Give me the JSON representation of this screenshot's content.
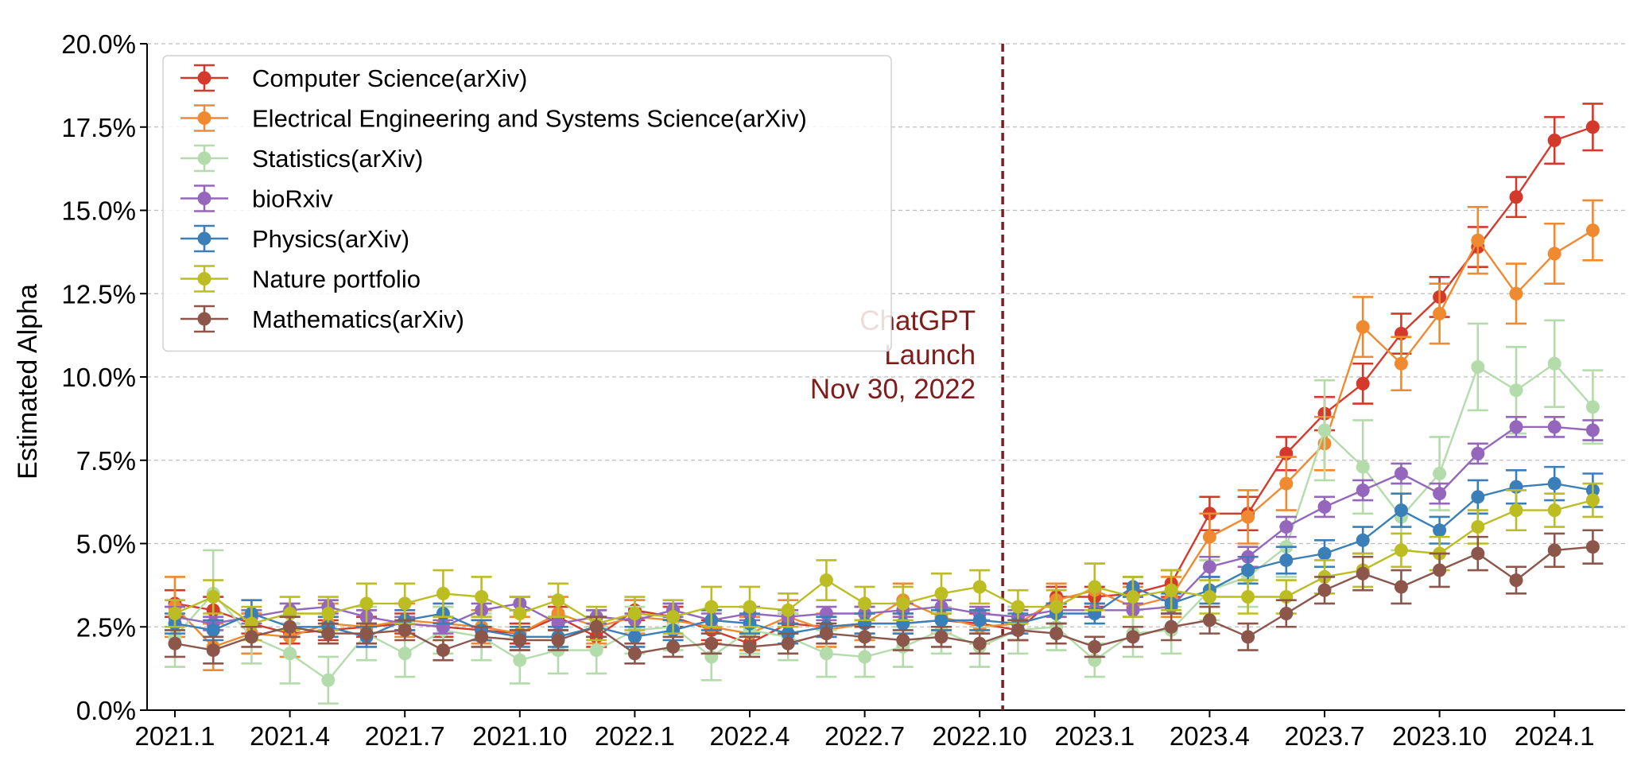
{
  "chart_data": {
    "type": "line",
    "ylabel": "Estimated Alpha",
    "xlabel": "",
    "ylim": [
      0,
      20
    ],
    "x_tick_labels": [
      "2021.1",
      "2021.4",
      "2021.7",
      "2021.10",
      "2022.1",
      "2022.4",
      "2022.7",
      "2022.10",
      "2023.1",
      "2023.4",
      "2023.7",
      "2023.10",
      "2024.1"
    ],
    "y_tick_labels": [
      "0.0%",
      "2.5%",
      "5.0%",
      "7.5%",
      "10.0%",
      "12.5%",
      "15.0%",
      "17.5%",
      "20.0%"
    ],
    "y_ticks": [
      0,
      2.5,
      5,
      7.5,
      10,
      12.5,
      15,
      17.5,
      20
    ],
    "grid": "horizontal dashed",
    "legend_position": "top-left",
    "annotation": {
      "x": "2022.11",
      "lines": [
        "ChatGPT",
        "Launch",
        "Nov 30, 2022"
      ],
      "color": "#7f1d1d",
      "style": "dashed vertical line"
    },
    "x": [
      "2021.1",
      "2021.2",
      "2021.3",
      "2021.4",
      "2021.5",
      "2021.6",
      "2021.7",
      "2021.8",
      "2021.9",
      "2021.10",
      "2021.11",
      "2021.12",
      "2022.1",
      "2022.2",
      "2022.3",
      "2022.4",
      "2022.5",
      "2022.6",
      "2022.7",
      "2022.8",
      "2022.9",
      "2022.10",
      "2022.11",
      "2022.12",
      "2023.1",
      "2023.2",
      "2023.3",
      "2023.4",
      "2023.5",
      "2023.6",
      "2023.7",
      "2023.8",
      "2023.9",
      "2023.10",
      "2023.11",
      "2023.12",
      "2024.1",
      "2024.2"
    ],
    "series": [
      {
        "name": "Computer Science(arXiv)",
        "color": "#d33a2c",
        "values": [
          3.2,
          3.0,
          2.6,
          2.3,
          2.4,
          2.5,
          2.6,
          2.5,
          2.4,
          2.3,
          2.8,
          2.2,
          3.0,
          2.8,
          2.4,
          2.0,
          2.6,
          2.5,
          2.6,
          2.6,
          2.7,
          2.6,
          2.4,
          3.4,
          3.4,
          3.5,
          3.8,
          5.9,
          5.9,
          7.7,
          8.9,
          9.8,
          11.3,
          12.4,
          13.9,
          15.4,
          17.1,
          17.5
        ],
        "errors": [
          0.4,
          0.4,
          0.3,
          0.3,
          0.3,
          0.3,
          0.3,
          0.3,
          0.3,
          0.3,
          0.3,
          0.3,
          0.3,
          0.3,
          0.3,
          0.3,
          0.3,
          0.3,
          0.3,
          0.3,
          0.3,
          0.3,
          0.3,
          0.3,
          0.3,
          0.3,
          0.4,
          0.5,
          0.5,
          0.5,
          0.5,
          0.6,
          0.6,
          0.6,
          0.6,
          0.6,
          0.7,
          0.7
        ]
      },
      {
        "name": "Electrical Engineering and Systems Science(arXiv)",
        "color": "#f08a30",
        "values": [
          3.1,
          1.9,
          2.3,
          2.2,
          2.6,
          2.5,
          2.7,
          2.6,
          2.5,
          2.3,
          2.9,
          2.5,
          2.8,
          2.7,
          2.5,
          2.3,
          2.8,
          2.4,
          2.6,
          3.3,
          2.8,
          2.5,
          2.6,
          3.3,
          3.6,
          3.1,
          3.4,
          5.2,
          5.8,
          6.8,
          8.0,
          11.5,
          10.4,
          11.9,
          14.1,
          12.5,
          13.7,
          14.4
        ],
        "errors": [
          0.9,
          0.7,
          0.6,
          0.6,
          0.6,
          0.5,
          0.5,
          0.5,
          0.5,
          0.5,
          0.5,
          0.5,
          0.5,
          0.5,
          0.5,
          0.5,
          0.5,
          0.5,
          0.5,
          0.5,
          0.5,
          0.5,
          0.5,
          0.5,
          0.8,
          0.6,
          0.6,
          0.7,
          0.8,
          0.8,
          0.8,
          0.9,
          0.8,
          0.9,
          1.0,
          0.9,
          0.9,
          0.9
        ]
      },
      {
        "name": "Statistics(arXiv)",
        "color": "#b3dcaa",
        "values": [
          2.2,
          3.5,
          2.2,
          1.7,
          0.9,
          2.3,
          1.7,
          2.4,
          2.2,
          1.5,
          1.8,
          1.8,
          2.4,
          2.5,
          1.6,
          2.4,
          2.2,
          1.7,
          1.6,
          1.9,
          2.4,
          1.9,
          2.4,
          2.5,
          1.5,
          2.3,
          2.4,
          3.6,
          4.0,
          4.9,
          8.4,
          7.3,
          5.8,
          7.1,
          10.3,
          9.6,
          10.4,
          9.1
        ],
        "errors": [
          0.9,
          1.3,
          0.8,
          0.9,
          0.7,
          0.8,
          0.7,
          0.7,
          0.7,
          0.7,
          0.7,
          0.7,
          0.7,
          0.7,
          0.7,
          0.7,
          0.7,
          0.7,
          0.6,
          0.6,
          0.7,
          0.6,
          0.7,
          0.7,
          0.5,
          0.7,
          0.7,
          0.9,
          0.9,
          0.9,
          1.5,
          1.4,
          1.0,
          1.1,
          1.3,
          1.3,
          1.3,
          1.1
        ]
      },
      {
        "name": "bioRxiv",
        "color": "#9467bd",
        "values": [
          2.8,
          2.6,
          2.8,
          3.0,
          3.1,
          2.8,
          2.6,
          2.5,
          3.0,
          3.2,
          2.6,
          2.8,
          2.7,
          3.0,
          2.7,
          2.9,
          2.8,
          2.9,
          2.9,
          3.0,
          3.1,
          2.9,
          2.8,
          3.0,
          3.0,
          3.0,
          3.1,
          4.3,
          4.6,
          5.5,
          6.1,
          6.6,
          7.1,
          6.5,
          7.7,
          8.5,
          8.5,
          8.4
        ],
        "errors": [
          0.3,
          0.2,
          0.2,
          0.2,
          0.2,
          0.2,
          0.2,
          0.2,
          0.2,
          0.2,
          0.2,
          0.2,
          0.2,
          0.2,
          0.2,
          0.2,
          0.2,
          0.2,
          0.2,
          0.2,
          0.2,
          0.2,
          0.2,
          0.2,
          0.2,
          0.2,
          0.2,
          0.3,
          0.3,
          0.3,
          0.3,
          0.3,
          0.3,
          0.3,
          0.3,
          0.3,
          0.3,
          0.3
        ]
      },
      {
        "name": "Physics(arXiv)",
        "color": "#3a7fb8",
        "values": [
          2.6,
          2.4,
          2.9,
          2.5,
          2.5,
          2.2,
          2.7,
          2.9,
          2.4,
          2.2,
          2.2,
          2.5,
          2.2,
          2.4,
          2.7,
          2.6,
          2.3,
          2.5,
          2.6,
          2.6,
          2.7,
          2.7,
          2.6,
          2.9,
          2.9,
          3.7,
          3.2,
          3.6,
          4.2,
          4.5,
          4.7,
          5.1,
          6.0,
          5.4,
          6.4,
          6.7,
          6.8,
          6.6
        ],
        "errors": [
          0.3,
          0.3,
          0.4,
          0.3,
          0.3,
          0.3,
          0.3,
          0.3,
          0.3,
          0.3,
          0.3,
          0.3,
          0.3,
          0.3,
          0.3,
          0.3,
          0.3,
          0.3,
          0.3,
          0.3,
          0.3,
          0.3,
          0.3,
          0.3,
          0.3,
          0.3,
          0.3,
          0.4,
          0.4,
          0.4,
          0.4,
          0.4,
          0.5,
          0.4,
          0.5,
          0.5,
          0.5,
          0.5
        ]
      },
      {
        "name": "Nature portfolio",
        "color": "#bcbd22",
        "values": [
          2.9,
          3.4,
          2.6,
          2.9,
          2.9,
          3.2,
          3.2,
          3.5,
          3.4,
          2.9,
          3.3,
          2.6,
          2.9,
          2.8,
          3.1,
          3.1,
          3.0,
          3.9,
          3.2,
          3.2,
          3.5,
          3.7,
          3.1,
          3.1,
          3.7,
          3.4,
          3.6,
          3.4,
          3.4,
          3.4,
          4.0,
          4.2,
          4.8,
          4.7,
          5.5,
          6.0,
          6.0,
          6.3
        ],
        "errors": [
          0.4,
          0.5,
          0.5,
          0.5,
          0.5,
          0.6,
          0.6,
          0.7,
          0.6,
          0.5,
          0.5,
          0.5,
          0.5,
          0.5,
          0.6,
          0.6,
          0.5,
          0.6,
          0.5,
          0.5,
          0.6,
          0.5,
          0.5,
          0.5,
          0.7,
          0.6,
          0.6,
          0.5,
          0.5,
          0.5,
          0.5,
          0.5,
          0.5,
          0.5,
          0.5,
          0.6,
          0.5,
          0.5
        ]
      },
      {
        "name": "Mathematics(arXiv)",
        "color": "#8c564b",
        "values": [
          2.0,
          1.8,
          2.2,
          2.5,
          2.3,
          2.3,
          2.4,
          1.8,
          2.2,
          2.1,
          2.1,
          2.5,
          1.7,
          1.9,
          2.0,
          1.9,
          2.0,
          2.3,
          2.2,
          2.1,
          2.2,
          2.0,
          2.4,
          2.3,
          1.9,
          2.2,
          2.5,
          2.7,
          2.2,
          2.9,
          3.6,
          4.1,
          3.7,
          4.2,
          4.7,
          3.9,
          4.8,
          4.9
        ],
        "errors": [
          0.4,
          0.4,
          0.3,
          0.3,
          0.3,
          0.3,
          0.3,
          0.3,
          0.3,
          0.3,
          0.3,
          0.3,
          0.3,
          0.3,
          0.3,
          0.3,
          0.3,
          0.3,
          0.3,
          0.3,
          0.3,
          0.3,
          0.3,
          0.3,
          0.3,
          0.3,
          0.4,
          0.4,
          0.4,
          0.4,
          0.4,
          0.5,
          0.5,
          0.5,
          0.5,
          0.4,
          0.5,
          0.5
        ]
      }
    ]
  }
}
